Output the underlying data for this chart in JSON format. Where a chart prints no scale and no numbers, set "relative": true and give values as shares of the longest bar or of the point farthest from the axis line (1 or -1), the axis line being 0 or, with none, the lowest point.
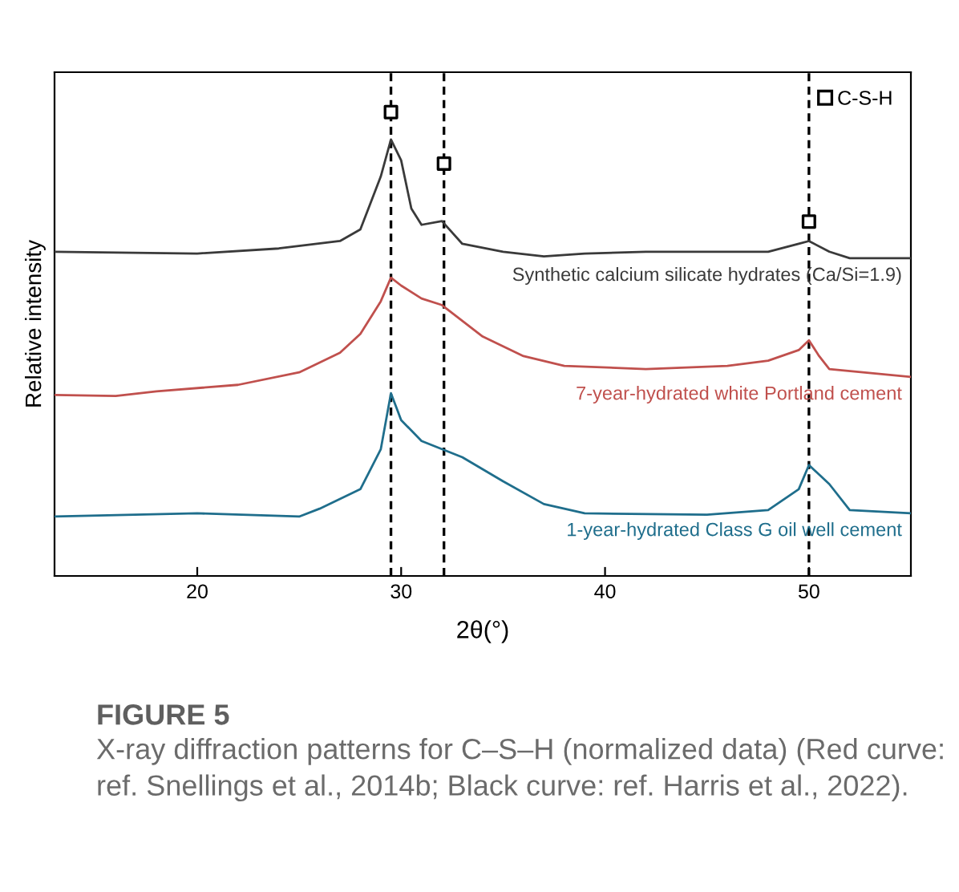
{
  "chart_data": {
    "type": "line",
    "relative": true,
    "xlabel": "2θ(°)",
    "ylabel": "Relative intensity",
    "xlim": [
      13,
      55
    ],
    "xticks": [
      20,
      30,
      40,
      50
    ],
    "grid": false,
    "legend": "top right",
    "series": [
      {
        "name": "Synthetic calcium silicate hydrates (Ca/Si=1.9)",
        "color": "#3a3a3a",
        "x": [
          13,
          20,
          24,
          27,
          28,
          29,
          29.5,
          30,
          30.5,
          31,
          32,
          33,
          35,
          37,
          39,
          42,
          45,
          48,
          49.5,
          50,
          51,
          52,
          55
        ],
        "values": [
          0.699,
          0.695,
          0.706,
          0.722,
          0.747,
          0.861,
          0.941,
          0.896,
          0.792,
          0.757,
          0.765,
          0.716,
          0.699,
          0.689,
          0.695,
          0.699,
          0.699,
          0.699,
          0.716,
          0.722,
          0.699,
          0.685,
          0.685
        ]
      },
      {
        "name": "7-year-hydrated white Portland cement",
        "color": "#c0504d",
        "x": [
          13,
          16,
          18,
          22,
          25,
          27,
          28,
          29,
          29.5,
          30,
          31,
          32,
          34,
          36,
          38,
          42,
          46,
          48,
          49.5,
          50,
          50.5,
          51,
          55
        ],
        "values": [
          0.39,
          0.388,
          0.398,
          0.412,
          0.439,
          0.481,
          0.522,
          0.592,
          0.643,
          0.626,
          0.598,
          0.584,
          0.516,
          0.474,
          0.453,
          0.446,
          0.453,
          0.464,
          0.487,
          0.508,
          0.474,
          0.446,
          0.429
        ]
      },
      {
        "name": "1-year-hydrated Class G oil well cement",
        "color": "#1f6e8c",
        "x": [
          13,
          20,
          25,
          26,
          28,
          29,
          29.5,
          30,
          31,
          33,
          35,
          37,
          39,
          45,
          48,
          49.5,
          50,
          51,
          52,
          55
        ],
        "values": [
          0.128,
          0.135,
          0.128,
          0.145,
          0.187,
          0.273,
          0.394,
          0.336,
          0.291,
          0.256,
          0.204,
          0.155,
          0.135,
          0.132,
          0.142,
          0.187,
          0.239,
          0.198,
          0.142,
          0.135
        ]
      },
      {
        "name": "C-S-H",
        "type": "scatter",
        "marker": "square",
        "color": "#000000",
        "x": [
          29.5,
          32.1,
          50
        ],
        "values": [
          1,
          0.889,
          0.764
        ]
      }
    ],
    "ref_lines": [
      {
        "axis": "x",
        "value": 29.5,
        "line_style": "dashed",
        "color": "#000000"
      },
      {
        "axis": "x",
        "value": 32.1,
        "line_style": "dashed",
        "color": "#000000"
      },
      {
        "axis": "x",
        "value": 50,
        "line_style": "dashed",
        "color": "#000000"
      }
    ],
    "annotations": [
      "FIGURE 5",
      "X-ray diffraction patterns for C–S–H (normalized data) (Red curve: ref. Snellings et al., 2014b; Black curve: ref. Harris et al., 2022)."
    ]
  }
}
